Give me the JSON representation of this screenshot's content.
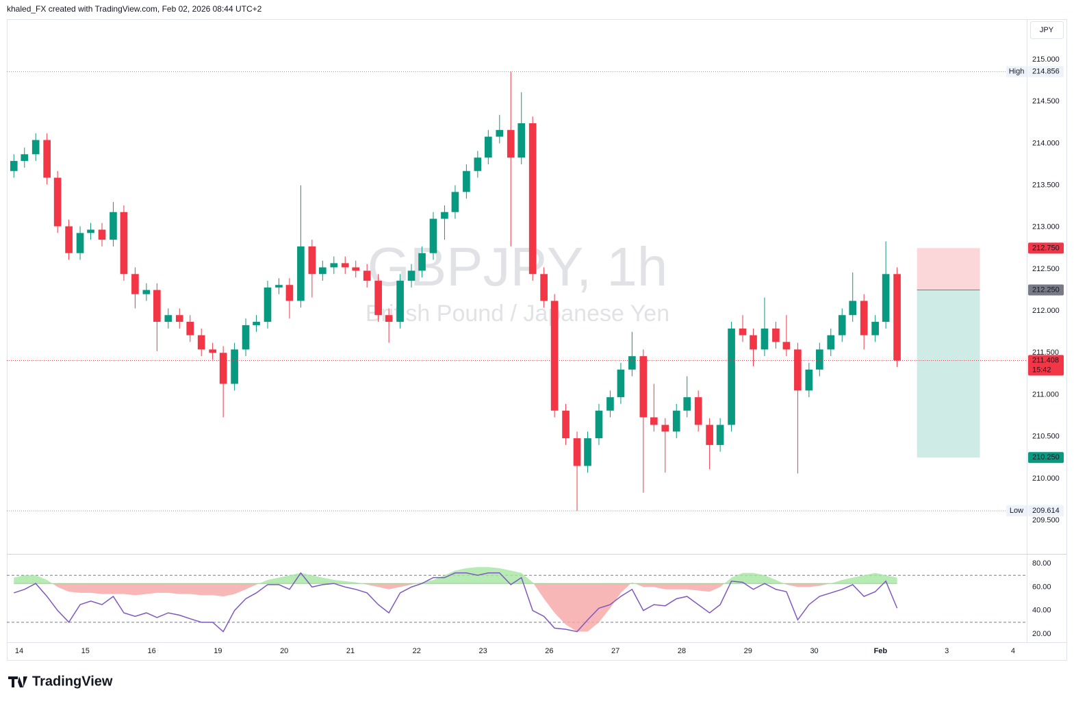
{
  "header": {
    "caption": "khaled_FX created with TradingView.com, Feb 02, 2026 08:44 UTC+2"
  },
  "chart_data": [
    {
      "type": "candlestick",
      "title": "GBPJPY, 1h",
      "subtitle": "British Pound / Japanese Yen",
      "currency": "JPY",
      "up_color": "#089981",
      "down_color": "#f23645",
      "x": [
        -0.08,
        0.08,
        0.25,
        0.42,
        0.58,
        0.75,
        0.92,
        1.08,
        1.25,
        1.42,
        1.58,
        1.75,
        1.92,
        2.08,
        2.25,
        2.42,
        2.58,
        2.75,
        2.92,
        3.08,
        3.25,
        3.42,
        3.58,
        3.75,
        3.92,
        4.08,
        4.25,
        4.42,
        4.58,
        4.75,
        4.92,
        5.08,
        5.25,
        5.42,
        5.58,
        5.75,
        5.92,
        6.08,
        6.25,
        6.42,
        6.58,
        6.75,
        6.92,
        7.08,
        7.25,
        7.42,
        7.58,
        7.75,
        7.92,
        8.08,
        8.25,
        8.42,
        8.58,
        8.75,
        8.92,
        9.08,
        9.25,
        9.42,
        9.58,
        9.75,
        9.92,
        10.08,
        10.25,
        10.42,
        10.58,
        10.75,
        10.92,
        11.08,
        11.25,
        11.42,
        11.58,
        11.75,
        11.92,
        12.08,
        12.25,
        12.42,
        12.58,
        12.75,
        12.92,
        13.08,
        13.25
      ],
      "open": [
        213.67,
        213.79,
        213.87,
        214.04,
        213.59,
        213.01,
        212.69,
        212.93,
        212.97,
        212.85,
        213.18,
        212.44,
        212.2,
        212.25,
        211.87,
        211.95,
        211.87,
        211.71,
        211.54,
        211.5,
        211.13,
        211.54,
        211.83,
        211.87,
        212.28,
        212.31,
        212.12,
        212.77,
        212.44,
        212.52,
        212.57,
        212.52,
        212.48,
        212.36,
        211.95,
        211.87,
        212.36,
        212.48,
        212.69,
        213.1,
        213.18,
        213.42,
        213.67,
        213.83,
        214.08,
        214.16,
        213.83,
        214.24,
        212.44,
        212.12,
        210.81,
        210.48,
        210.15,
        210.48,
        210.81,
        210.97,
        211.3,
        211.46,
        210.73,
        210.64,
        210.56,
        210.81,
        210.97,
        210.64,
        210.4,
        210.64,
        211.79,
        211.71,
        211.54,
        211.79,
        211.63,
        211.54,
        211.05,
        211.3,
        211.54,
        211.71,
        211.95,
        212.12,
        211.71,
        211.87,
        212.44
      ],
      "high": [
        213.87,
        213.95,
        214.12,
        214.12,
        213.67,
        213.09,
        213.01,
        213.05,
        213.05,
        213.3,
        213.26,
        212.52,
        212.33,
        212.33,
        212.03,
        212.03,
        211.95,
        211.79,
        211.62,
        211.58,
        211.62,
        211.91,
        211.95,
        212.36,
        212.39,
        212.39,
        213.5,
        212.85,
        212.6,
        212.65,
        212.65,
        212.6,
        212.56,
        212.44,
        212.03,
        212.44,
        212.56,
        212.77,
        213.18,
        213.26,
        213.5,
        213.75,
        213.91,
        214.16,
        214.34,
        214.856,
        214.61,
        214.32,
        212.52,
        212.2,
        210.89,
        210.56,
        210.56,
        210.89,
        211.05,
        211.38,
        211.75,
        211.54,
        211.13,
        210.72,
        210.89,
        211.22,
        211.05,
        210.72,
        210.72,
        211.87,
        211.95,
        211.79,
        212.16,
        211.87,
        211.95,
        211.62,
        211.38,
        211.62,
        211.79,
        212.03,
        212.46,
        212.2,
        211.95,
        212.83,
        212.52
      ],
      "low": [
        213.59,
        213.71,
        213.79,
        213.51,
        212.93,
        212.61,
        212.61,
        212.85,
        212.77,
        212.77,
        212.36,
        212.03,
        212.12,
        211.52,
        211.79,
        211.79,
        211.63,
        211.46,
        211.42,
        210.73,
        211.05,
        211.46,
        211.75,
        211.79,
        212.2,
        211.91,
        212.04,
        212.16,
        212.36,
        212.44,
        212.44,
        212.4,
        212.28,
        211.87,
        211.62,
        211.79,
        212.28,
        212.4,
        212.61,
        212.85,
        213.1,
        213.34,
        213.59,
        213.75,
        214.0,
        212.77,
        213.75,
        212.36,
        212.04,
        210.73,
        210.4,
        209.614,
        210.07,
        210.4,
        210.73,
        210.89,
        211.22,
        209.83,
        210.56,
        210.07,
        210.48,
        210.73,
        210.56,
        210.11,
        210.32,
        210.56,
        211.63,
        211.34,
        211.46,
        211.55,
        211.46,
        210.06,
        210.97,
        211.22,
        211.46,
        211.63,
        211.87,
        211.54,
        211.63,
        211.79,
        211.33
      ],
      "close": [
        213.79,
        213.87,
        214.04,
        213.59,
        213.01,
        212.69,
        212.93,
        212.97,
        212.85,
        213.18,
        212.44,
        212.2,
        212.25,
        211.87,
        211.95,
        211.87,
        211.71,
        211.54,
        211.5,
        211.13,
        211.54,
        211.83,
        211.87,
        212.28,
        212.31,
        212.12,
        212.77,
        212.44,
        212.52,
        212.57,
        212.52,
        212.48,
        212.36,
        211.95,
        211.87,
        212.36,
        212.48,
        212.69,
        213.1,
        213.18,
        213.42,
        213.67,
        213.83,
        214.08,
        214.16,
        213.83,
        214.24,
        212.44,
        212.12,
        210.81,
        210.48,
        210.15,
        210.48,
        210.81,
        210.97,
        211.3,
        211.46,
        210.73,
        210.64,
        210.56,
        210.81,
        210.97,
        210.64,
        210.4,
        210.64,
        211.79,
        211.71,
        211.54,
        211.79,
        211.63,
        211.54,
        211.05,
        211.3,
        211.54,
        211.71,
        211.95,
        212.12,
        211.71,
        211.87,
        212.44,
        211.408
      ],
      "xlim": [
        -0.186,
        15.207
      ],
      "ylim": [
        209.108,
        215.466
      ],
      "xticks": [
        {
          "value": 0,
          "label": "14"
        },
        {
          "value": 1,
          "label": "15"
        },
        {
          "value": 2,
          "label": "16"
        },
        {
          "value": 3,
          "label": "19"
        },
        {
          "value": 4,
          "label": "20"
        },
        {
          "value": 5,
          "label": "21"
        },
        {
          "value": 6,
          "label": "22"
        },
        {
          "value": 7,
          "label": "23"
        },
        {
          "value": 8,
          "label": "26"
        },
        {
          "value": 9,
          "label": "27"
        },
        {
          "value": 10,
          "label": "28"
        },
        {
          "value": 11,
          "label": "29"
        },
        {
          "value": 12,
          "label": "30"
        },
        {
          "value": 13,
          "label": "Feb"
        },
        {
          "value": 14,
          "label": "3"
        },
        {
          "value": 15,
          "label": "4"
        }
      ],
      "yticks": [
        {
          "value": 209.5,
          "label": "209.500"
        },
        {
          "value": 210,
          "label": "210.000"
        },
        {
          "value": 210.5,
          "label": "210.500"
        },
        {
          "value": 211,
          "label": "211.000"
        },
        {
          "value": 211.5,
          "label": "211.500"
        },
        {
          "value": 212,
          "label": "212.000"
        },
        {
          "value": 212.5,
          "label": "212.500"
        },
        {
          "value": 213,
          "label": "213.000"
        },
        {
          "value": 213.5,
          "label": "213.500"
        },
        {
          "value": 214,
          "label": "214.000"
        },
        {
          "value": 214.5,
          "label": "214.500"
        },
        {
          "value": 215,
          "label": "215.000"
        }
      ],
      "high_marker": {
        "label": "High",
        "value": 214.856
      },
      "low_marker": {
        "label": "Low",
        "value": 209.614
      },
      "last_price": {
        "value": 211.408,
        "countdown": "15:42"
      },
      "position": {
        "stop": {
          "value": 212.75,
          "label": "212.750"
        },
        "entry": {
          "value": 212.25,
          "label": "212.250"
        },
        "target": {
          "value": 210.25,
          "label": "210.250"
        },
        "x": [
          13.55,
          14.5
        ]
      }
    },
    {
      "type": "oscillator",
      "line_color": "#7e57c2",
      "above_color": "#a5e6a0",
      "below_color": "#f7a5a5",
      "values": [
        55,
        58,
        63,
        52,
        40,
        30,
        45,
        48,
        45,
        52,
        38,
        35,
        38,
        34,
        38,
        36,
        33,
        30,
        30,
        22,
        40,
        50,
        55,
        62,
        62,
        58,
        72,
        60,
        62,
        63,
        60,
        58,
        55,
        45,
        38,
        55,
        60,
        63,
        68,
        68,
        72,
        72,
        70,
        72,
        72,
        62,
        68,
        40,
        35,
        25,
        24,
        22,
        32,
        42,
        45,
        52,
        58,
        40,
        45,
        44,
        50,
        52,
        45,
        38,
        45,
        65,
        64,
        58,
        63,
        58,
        56,
        32,
        45,
        52,
        55,
        58,
        62,
        52,
        56,
        65,
        42
      ],
      "smoothed": [
        68,
        70,
        70,
        66,
        60,
        56,
        55,
        55,
        54,
        54,
        54,
        53,
        54,
        55,
        55,
        54,
        54,
        53,
        53,
        52,
        54,
        58,
        62,
        66,
        68,
        70,
        72,
        70,
        68,
        66,
        65,
        64,
        62,
        60,
        58,
        60,
        62,
        64,
        66,
        70,
        74,
        76,
        77,
        77,
        76,
        74,
        72,
        64,
        50,
        38,
        28,
        22,
        22,
        30,
        42,
        55,
        64,
        60,
        60,
        58,
        58,
        58,
        57,
        56,
        60,
        68,
        72,
        72,
        70,
        66,
        62,
        60,
        60,
        61,
        63,
        66,
        68,
        70,
        72,
        70,
        68
      ],
      "baseline": 63,
      "levels": [
        70,
        30
      ],
      "ylim": [
        13,
        87.6
      ],
      "yticks": [
        {
          "value": 20,
          "label": "20.00"
        },
        {
          "value": 40,
          "label": "40.00"
        },
        {
          "value": 60,
          "label": "60.00"
        },
        {
          "value": 80,
          "label": "80.00"
        }
      ]
    }
  ],
  "footer": {
    "logo": "TradingView"
  }
}
